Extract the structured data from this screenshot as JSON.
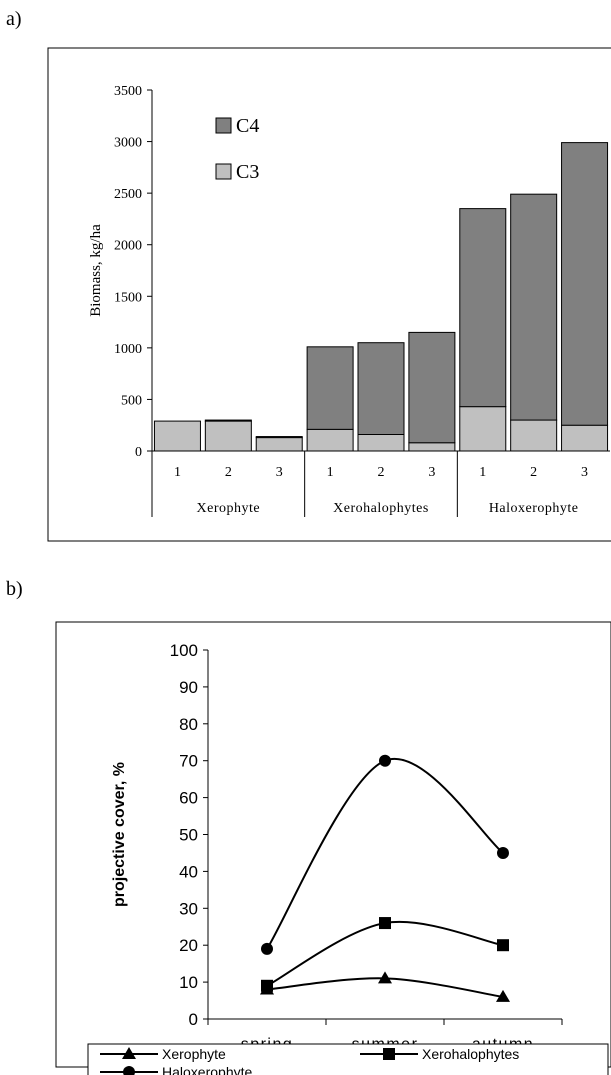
{
  "panels": {
    "a_label": "a)",
    "b_label": "b)"
  },
  "chart_data": [
    {
      "type": "bar",
      "stacked": true,
      "ylabel": "Biomass, kg/ha",
      "ylim": [
        0,
        3500
      ],
      "yticks": [
        0,
        500,
        1000,
        1500,
        2000,
        2500,
        3000,
        3500
      ],
      "categories": [
        "1",
        "2",
        "3",
        "1",
        "2",
        "3",
        "1",
        "2",
        "3"
      ],
      "groups": [
        {
          "label": "Xerophyte",
          "count": 3
        },
        {
          "label": "Xerohalophytes",
          "count": 3
        },
        {
          "label": "Haloxerophyte",
          "count": 3
        }
      ],
      "legend_position": "top-left",
      "series": [
        {
          "name": "C3",
          "color": "#c0c0c0",
          "values": [
            290,
            290,
            130,
            210,
            160,
            80,
            430,
            300,
            250
          ]
        },
        {
          "name": "C4",
          "color": "#808080",
          "values": [
            0,
            10,
            10,
            800,
            890,
            1070,
            1920,
            2190,
            2740
          ]
        }
      ],
      "legend_order": [
        "C4",
        "C3"
      ]
    },
    {
      "type": "line",
      "ylabel": "projective cover, %",
      "ylim": [
        0,
        100
      ],
      "yticks": [
        0,
        10,
        20,
        30,
        40,
        50,
        60,
        70,
        80,
        90,
        100
      ],
      "categories": [
        "spring",
        "summer",
        "autumn"
      ],
      "legend_position": "bottom",
      "series": [
        {
          "name": "Xerophyte",
          "marker": "triangle",
          "values": [
            8,
            11,
            6
          ]
        },
        {
          "name": "Xerohalophytes",
          "marker": "square",
          "values": [
            9,
            26,
            20
          ]
        },
        {
          "name": "Haloxerophyte",
          "marker": "circle",
          "values": [
            19,
            70,
            45
          ]
        }
      ]
    }
  ]
}
